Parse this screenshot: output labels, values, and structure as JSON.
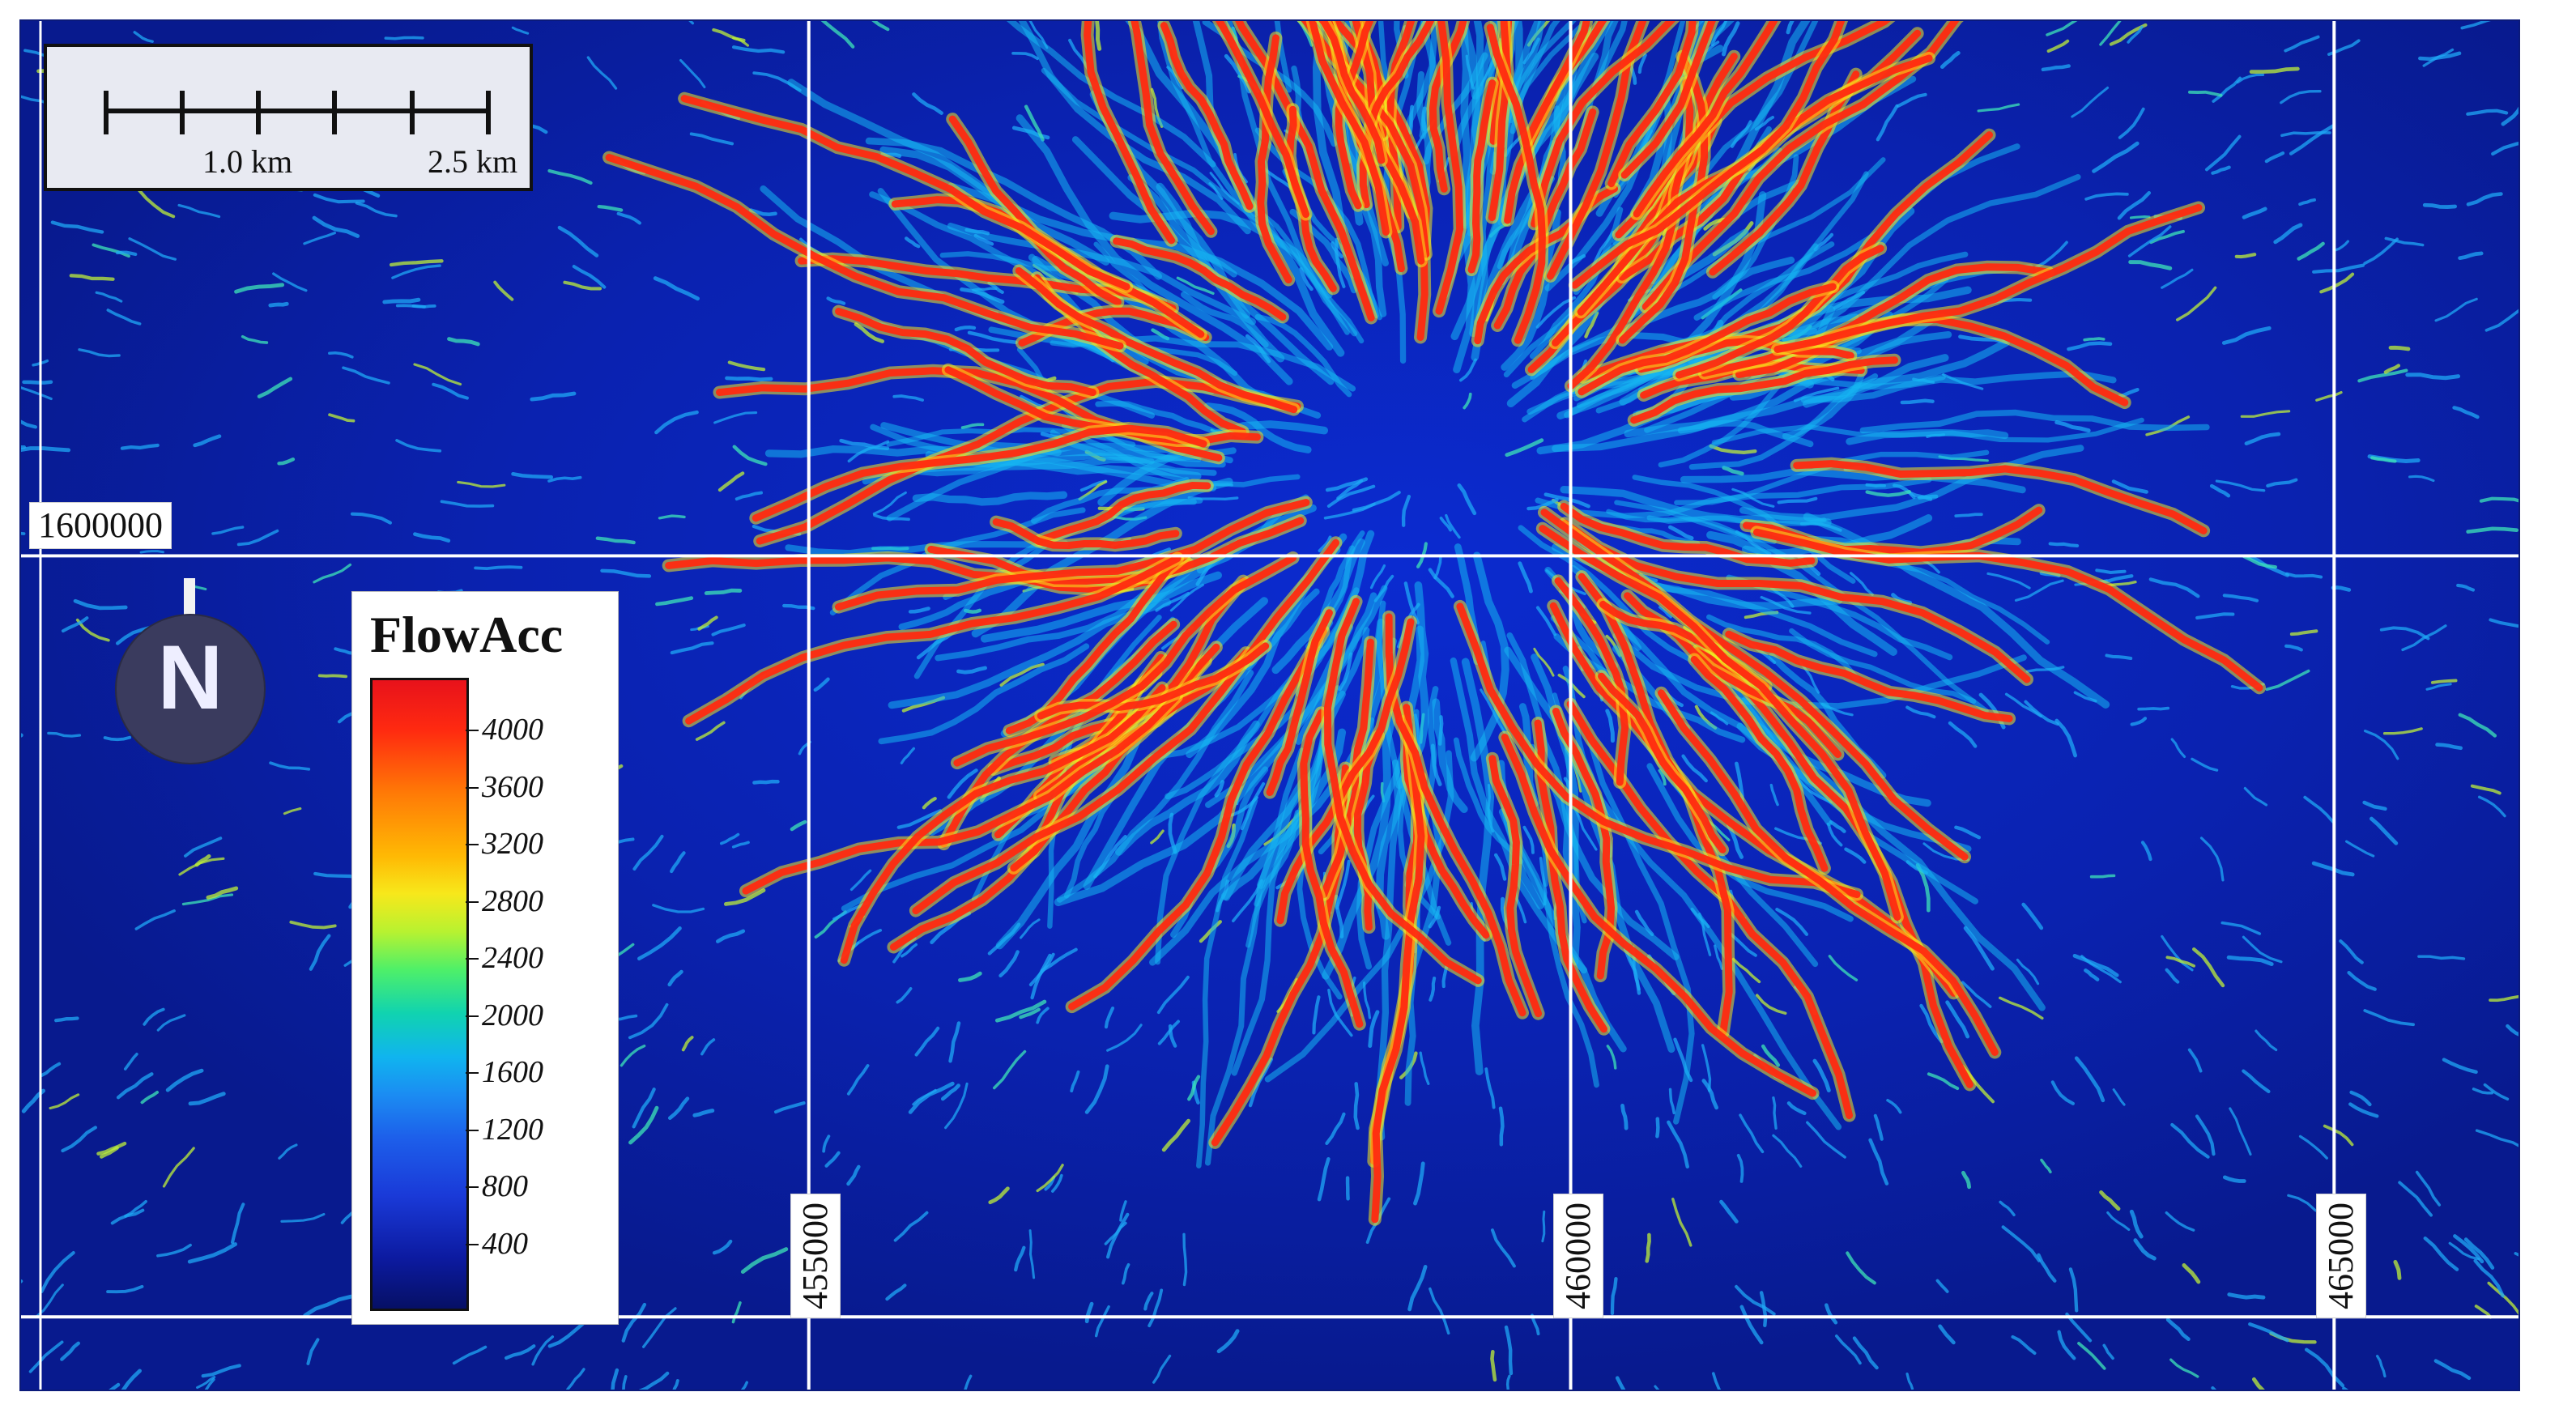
{
  "map": {
    "easting_labels": [
      "455000",
      "460000",
      "465000"
    ],
    "northing_labels": [
      "1600000"
    ],
    "colors": {
      "background": "#0a1f9c",
      "grid": "#ffffff",
      "low": "#061065",
      "high": "#e8121b"
    }
  },
  "scale_bar": {
    "labels": [
      "1.0 km",
      "2.5 km"
    ]
  },
  "north_arrow": {
    "letter": "N"
  },
  "legend": {
    "title": "FlowAcc",
    "ticks": [
      "4000",
      "3600",
      "3200",
      "2800",
      "2400",
      "2000",
      "1600",
      "1200",
      "800",
      "400"
    ]
  }
}
